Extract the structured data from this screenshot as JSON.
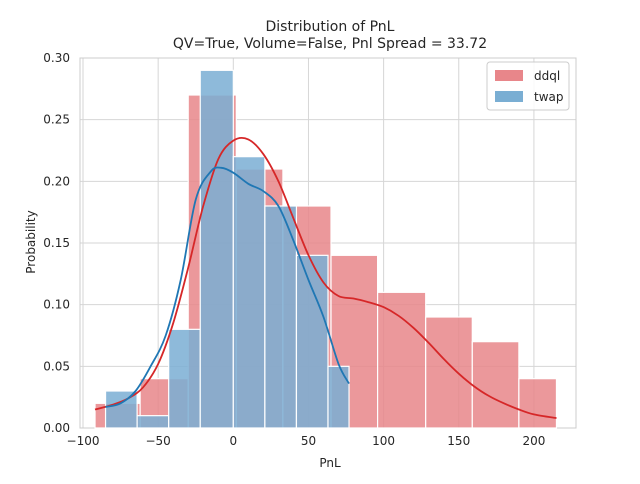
{
  "chart_data": {
    "type": "bar",
    "title": "Distribution of PnL",
    "subtitle": "QV=True, Volume=False, Pnl Spread = 33.72",
    "xlabel": "PnL",
    "ylabel": "Probability",
    "xlim": [
      -102,
      228
    ],
    "ylim": [
      0,
      0.3
    ],
    "xticks": [
      -100,
      -50,
      0,
      50,
      100,
      150,
      200
    ],
    "yticks": [
      0.0,
      0.05,
      0.1,
      0.15,
      0.2,
      0.25,
      0.3
    ],
    "xtick_labels": [
      "−100",
      "−50",
      "0",
      "50",
      "100",
      "150",
      "200"
    ],
    "ytick_labels": [
      "0.00",
      "0.05",
      "0.10",
      "0.15",
      "0.20",
      "0.25",
      "0.30"
    ],
    "grid": true,
    "legend_position": "top-right",
    "series": [
      {
        "name": "ddql",
        "color": "#e8868a",
        "line_color": "#d62728",
        "bin_edges": [
          -92,
          -62,
          -30,
          2,
          33,
          65,
          96,
          128,
          159,
          190,
          215
        ],
        "values": [
          0.02,
          0.04,
          0.27,
          0.21,
          0.18,
          0.14,
          0.11,
          0.09,
          0.07,
          0.04
        ],
        "kde_x": [
          -92,
          -80,
          -70,
          -60,
          -50,
          -40,
          -30,
          -20,
          -10,
          0,
          10,
          20,
          30,
          40,
          50,
          60,
          70,
          80,
          90,
          100,
          110,
          120,
          130,
          140,
          150,
          160,
          170,
          180,
          190,
          200,
          215
        ],
        "kde_y": [
          0.015,
          0.019,
          0.024,
          0.033,
          0.052,
          0.085,
          0.13,
          0.18,
          0.218,
          0.233,
          0.234,
          0.222,
          0.2,
          0.17,
          0.14,
          0.118,
          0.107,
          0.105,
          0.102,
          0.098,
          0.091,
          0.081,
          0.069,
          0.056,
          0.044,
          0.034,
          0.026,
          0.02,
          0.015,
          0.011,
          0.008
        ]
      },
      {
        "name": "twap",
        "color": "#7aaed3",
        "line_color": "#1f77b4",
        "bin_edges": [
          -85,
          -64,
          -43,
          -22,
          0,
          21,
          42,
          63,
          77
        ],
        "values": [
          0.03,
          0.01,
          0.08,
          0.29,
          0.22,
          0.18,
          0.14,
          0.05
        ],
        "kde_x": [
          -85,
          -75,
          -65,
          -55,
          -45,
          -35,
          -25,
          -15,
          -8,
          0,
          10,
          20,
          30,
          40,
          50,
          60,
          70,
          77
        ],
        "kde_y": [
          0.017,
          0.02,
          0.03,
          0.05,
          0.075,
          0.12,
          0.185,
          0.208,
          0.211,
          0.207,
          0.198,
          0.192,
          0.18,
          0.152,
          0.12,
          0.09,
          0.052,
          0.036
        ]
      }
    ]
  }
}
